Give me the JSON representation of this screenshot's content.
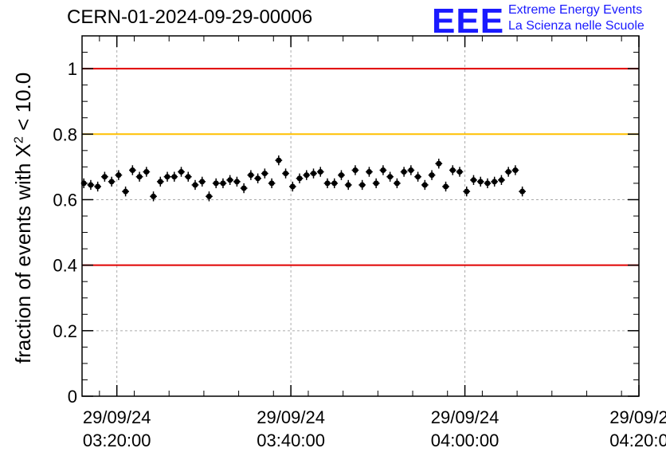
{
  "title": "CERN-01-2024-09-29-00006",
  "logo": {
    "mark": "EEE",
    "line1": "Extreme Energy Events",
    "line2": "La Scienza nelle Scuole",
    "color": "#1a1aff"
  },
  "chart_data": {
    "type": "scatter",
    "title": "CERN-01-2024-09-29-00006",
    "ylabel_parts": {
      "prefix": "fraction of events with ",
      "chi": "X",
      "exp": "2",
      "suffix": " < 10.0"
    },
    "xlabel": "",
    "ylim": [
      0,
      1.1
    ],
    "yticks": [
      {
        "value": 0,
        "label": "0"
      },
      {
        "value": 0.2,
        "label": "0.2"
      },
      {
        "value": 0.4,
        "label": "0.4"
      },
      {
        "value": 0.6,
        "label": "0.6"
      },
      {
        "value": 0.8,
        "label": "0.8"
      },
      {
        "value": 1,
        "label": "1"
      }
    ],
    "xlim_minutes": [
      15,
      47
    ],
    "xticks": [
      {
        "minute": 17,
        "date": "29/09/24",
        "time": "03:20:00"
      },
      {
        "minute": 27,
        "date": "29/09/24",
        "time": "03:40:00"
      },
      {
        "minute": 37,
        "date": "29/09/24",
        "time": "04:00:00"
      },
      {
        "minute": 47,
        "date": "29/09/2",
        "time": "04:20:0"
      }
    ],
    "grid": true,
    "reference_lines": [
      {
        "y": 1.0,
        "color": "#e00000"
      },
      {
        "y": 0.8,
        "color": "#ffc000"
      },
      {
        "y": 0.4,
        "color": "#e00000"
      }
    ],
    "series": [
      {
        "marker_color": "#000000",
        "x_error": 0.2,
        "y_error": 0.015,
        "points": [
          [
            15.1,
            0.65
          ],
          [
            15.5,
            0.645
          ],
          [
            15.9,
            0.64
          ],
          [
            16.3,
            0.67
          ],
          [
            16.7,
            0.655
          ],
          [
            17.1,
            0.675
          ],
          [
            17.5,
            0.625
          ],
          [
            17.9,
            0.69
          ],
          [
            18.3,
            0.67
          ],
          [
            18.7,
            0.685
          ],
          [
            19.1,
            0.61
          ],
          [
            19.5,
            0.655
          ],
          [
            19.9,
            0.67
          ],
          [
            20.3,
            0.67
          ],
          [
            20.7,
            0.685
          ],
          [
            21.1,
            0.67
          ],
          [
            21.5,
            0.645
          ],
          [
            21.9,
            0.655
          ],
          [
            22.3,
            0.61
          ],
          [
            22.7,
            0.65
          ],
          [
            23.1,
            0.65
          ],
          [
            23.5,
            0.66
          ],
          [
            23.9,
            0.655
          ],
          [
            24.3,
            0.635
          ],
          [
            24.7,
            0.675
          ],
          [
            25.1,
            0.665
          ],
          [
            25.5,
            0.68
          ],
          [
            25.9,
            0.65
          ],
          [
            26.3,
            0.72
          ],
          [
            26.7,
            0.68
          ],
          [
            27.1,
            0.64
          ],
          [
            27.5,
            0.665
          ],
          [
            27.9,
            0.675
          ],
          [
            28.3,
            0.68
          ],
          [
            28.7,
            0.685
          ],
          [
            29.1,
            0.65
          ],
          [
            29.5,
            0.65
          ],
          [
            29.9,
            0.675
          ],
          [
            30.3,
            0.645
          ],
          [
            30.7,
            0.69
          ],
          [
            31.1,
            0.645
          ],
          [
            31.5,
            0.685
          ],
          [
            31.9,
            0.65
          ],
          [
            32.3,
            0.69
          ],
          [
            32.7,
            0.67
          ],
          [
            33.1,
            0.65
          ],
          [
            33.5,
            0.685
          ],
          [
            33.9,
            0.69
          ],
          [
            34.3,
            0.67
          ],
          [
            34.7,
            0.645
          ],
          [
            35.1,
            0.675
          ],
          [
            35.5,
            0.71
          ],
          [
            35.9,
            0.64
          ],
          [
            36.3,
            0.69
          ],
          [
            36.7,
            0.685
          ],
          [
            37.1,
            0.625
          ],
          [
            37.5,
            0.66
          ],
          [
            37.9,
            0.655
          ],
          [
            38.3,
            0.65
          ],
          [
            38.7,
            0.655
          ],
          [
            39.1,
            0.66
          ],
          [
            39.5,
            0.685
          ],
          [
            39.9,
            0.69
          ],
          [
            40.3,
            0.625
          ]
        ]
      }
    ]
  }
}
